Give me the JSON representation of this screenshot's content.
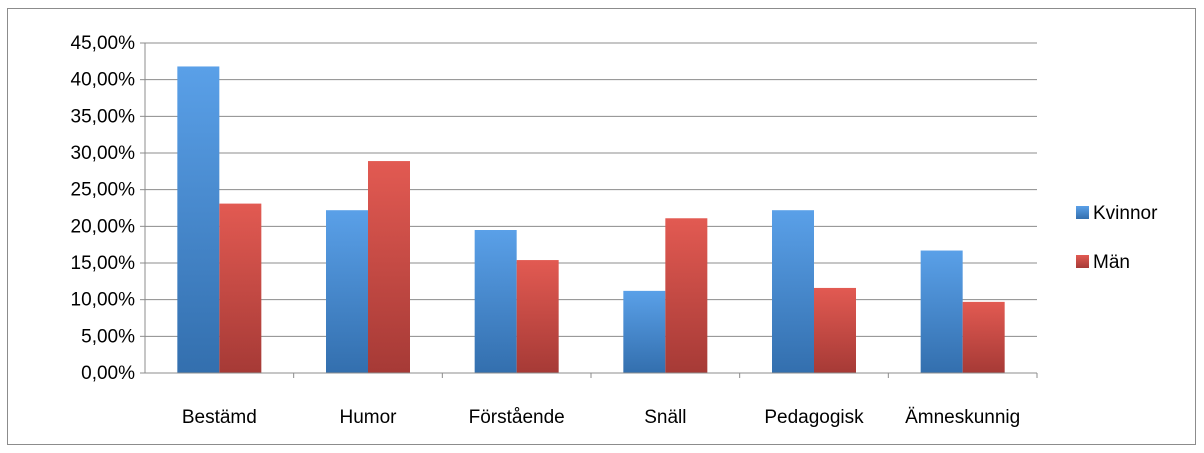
{
  "chart_data": {
    "type": "bar",
    "categories": [
      "Bestämd",
      "Humor",
      "Förstående",
      "Snäll",
      "Pedagogisk",
      "Ämneskunnig"
    ],
    "series": [
      {
        "name": "Kvinnor",
        "color": "#4a8fd6",
        "values": [
          41.8,
          22.2,
          19.5,
          11.2,
          22.2,
          16.7
        ]
      },
      {
        "name": "Män",
        "color": "#d0504a",
        "values": [
          23.1,
          28.9,
          15.4,
          21.1,
          11.6,
          9.7
        ]
      }
    ],
    "ylim": [
      0,
      45
    ],
    "ytick_step": 5,
    "ytick_labels": [
      "0,00%",
      "5,00%",
      "10,00%",
      "15,00%",
      "20,00%",
      "25,00%",
      "30,00%",
      "35,00%",
      "40,00%",
      "45,00%"
    ],
    "grid": true,
    "legend": "right",
    "title": "",
    "xlabel": "",
    "ylabel": ""
  }
}
